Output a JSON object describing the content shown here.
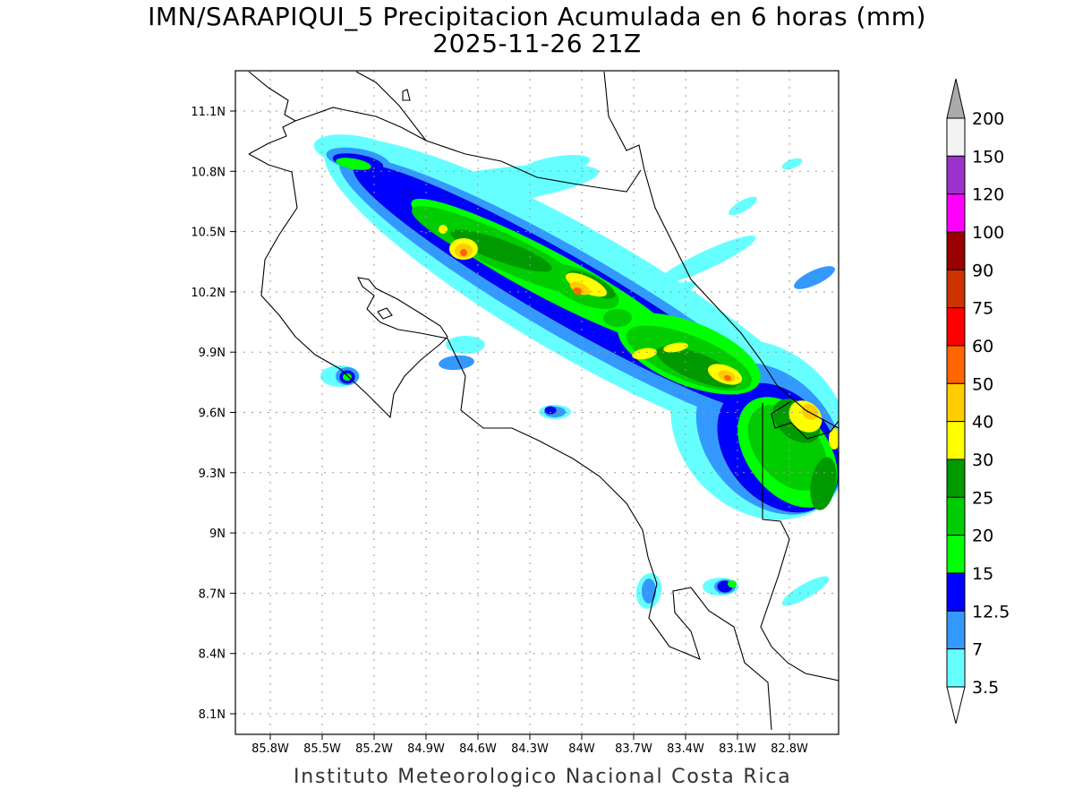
{
  "title": {
    "line1": "IMN/SARAPIQUI_5 Precipitacion Acumulada en 6 horas (mm)",
    "line2": "2025-11-26 21Z"
  },
  "footer": "Instituto Meteorologico Nacional Costa Rica",
  "map": {
    "lon_range": [
      "86.0W",
      "82.5W"
    ],
    "lat_range": [
      "8.0N",
      "11.3N"
    ],
    "lon_ticks": [
      "85.8W",
      "85.5W",
      "85.2W",
      "84.9W",
      "84.6W",
      "84.3W",
      "84W",
      "83.7W",
      "83.4W",
      "83.1W",
      "82.8W"
    ],
    "lat_ticks": [
      "11.1N",
      "10.8N",
      "10.5N",
      "10.2N",
      "9.9N",
      "9.6N",
      "9.3N",
      "9N",
      "8.7N",
      "8.4N",
      "8.1N"
    ],
    "grid": "dotted"
  },
  "colorbar": {
    "labels": [
      "200",
      "150",
      "120",
      "100",
      "90",
      "75",
      "60",
      "50",
      "40",
      "30",
      "25",
      "20",
      "15",
      "12.5",
      "7",
      "3.5"
    ],
    "colors_top_to_bottom": [
      "#f4f4f4",
      "#9933cc",
      "#ff00ff",
      "#990000",
      "#cc3300",
      "#ff0000",
      "#ff6600",
      "#ffcc00",
      "#ffff00",
      "#009900",
      "#00cc00",
      "#00ff00",
      "#0000ff",
      "#3399ff",
      "#66ffff"
    ],
    "over_color": "#aaaaaa",
    "under_color": "#ffffff"
  }
}
